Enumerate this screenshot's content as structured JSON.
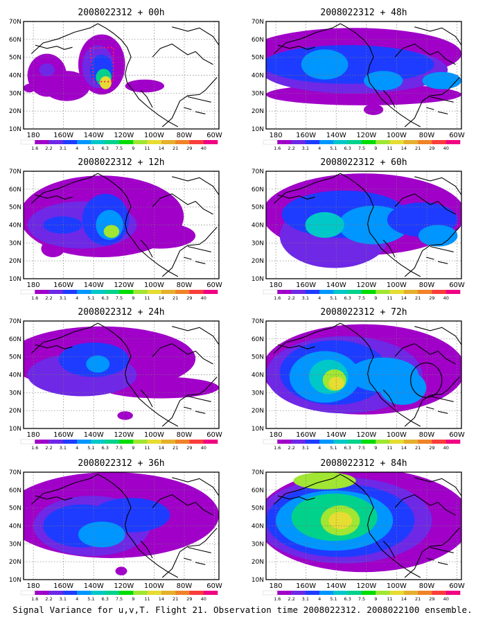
{
  "caption": "Signal Variance for u,v,T. Flight 21. Observation time 2008022312. 2008022100 ensemble.",
  "lat_labels": [
    "70N",
    "60N",
    "50N",
    "40N",
    "30N",
    "20N",
    "10N"
  ],
  "lon_labels": [
    "180",
    "160W",
    "140W",
    "120W",
    "100W",
    "80W",
    "60W"
  ],
  "colorbar": {
    "labels": [
      "1.6",
      "2.2",
      "3.1",
      "4",
      "5.1",
      "6.3",
      "7.5",
      "9",
      "11",
      "14",
      "21",
      "29",
      "40"
    ],
    "colors": [
      "#ffffff",
      "#a000c8",
      "#6e28e6",
      "#1e3cff",
      "#0096ff",
      "#00c8c8",
      "#00d28c",
      "#00dc00",
      "#a0e632",
      "#e6dc32",
      "#e6af2d",
      "#f08228",
      "#fa3c3c",
      "#f00082"
    ]
  },
  "panels": [
    {
      "title": "2008022312 + 00h"
    },
    {
      "title": "2008022312 + 48h"
    },
    {
      "title": "2008022312 + 12h"
    },
    {
      "title": "2008022312 + 60h"
    },
    {
      "title": "2008022312 + 24h"
    },
    {
      "title": "2008022312 + 72h"
    },
    {
      "title": "2008022312 + 36h"
    },
    {
      "title": "2008022312 + 84h"
    }
  ]
}
